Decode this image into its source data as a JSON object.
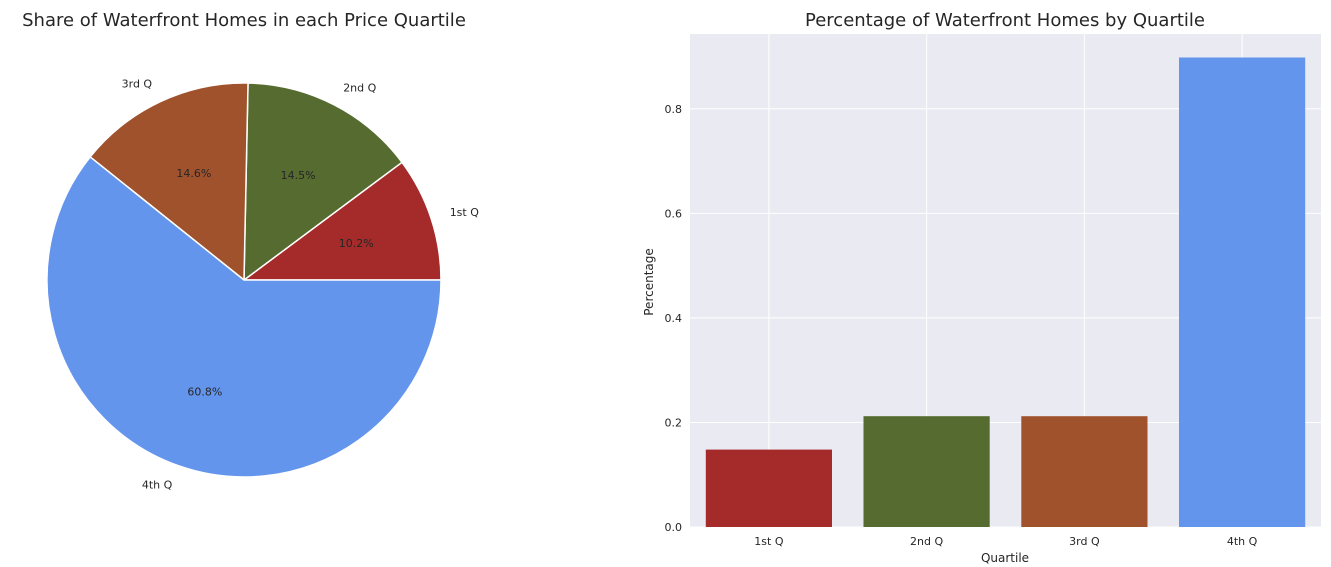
{
  "chart_data": [
    {
      "type": "pie",
      "title": "Share of Waterfront Homes in each Price Quartile",
      "categories": [
        "1st Q",
        "2nd Q",
        "3rd Q",
        "4th Q"
      ],
      "values": [
        10.2,
        14.5,
        14.6,
        60.8
      ],
      "value_labels": [
        "10.2%",
        "14.5%",
        "14.6%",
        "60.8%"
      ],
      "colors": [
        "#a52a2a",
        "#556b2f",
        "#a0522d",
        "#6495ed"
      ],
      "start_angle_deg": 0,
      "direction": "counterclockwise"
    },
    {
      "type": "bar",
      "title": "Percentage of Waterfront Homes by Quartile",
      "categories": [
        "1st Q",
        "2nd Q",
        "3rd Q",
        "4th Q"
      ],
      "values": [
        0.148,
        0.212,
        0.212,
        0.898
      ],
      "colors": [
        "#a52a2a",
        "#556b2f",
        "#a0522d",
        "#6495ed"
      ],
      "xlabel": "Quartile",
      "ylabel": "Percentage",
      "ylim": [
        0,
        0.943
      ],
      "yticks": [
        0.0,
        0.2,
        0.4,
        0.6,
        0.8
      ],
      "ytick_labels": [
        "0.0",
        "0.2",
        "0.4",
        "0.6",
        "0.8"
      ],
      "grid": true,
      "background": "#eaeaf2"
    }
  ]
}
